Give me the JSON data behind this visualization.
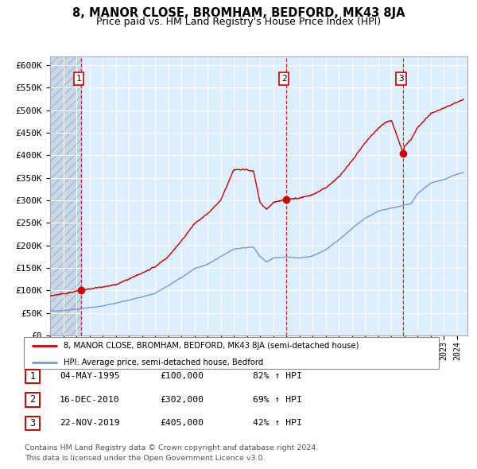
{
  "title": "8, MANOR CLOSE, BROMHAM, BEDFORD, MK43 8JA",
  "subtitle": "Price paid vs. HM Land Registry's House Price Index (HPI)",
  "ylim": [
    0,
    620000
  ],
  "yticks": [
    0,
    50000,
    100000,
    150000,
    200000,
    250000,
    300000,
    350000,
    400000,
    450000,
    500000,
    550000,
    600000
  ],
  "ytick_labels": [
    "£0",
    "£50K",
    "£100K",
    "£150K",
    "£200K",
    "£250K",
    "£300K",
    "£350K",
    "£400K",
    "£450K",
    "£500K",
    "£550K",
    "£600K"
  ],
  "hpi_color": "#7799cc",
  "price_color": "#cc0000",
  "sale1_date": 1995.34,
  "sale1_price": 100000,
  "sale2_date": 2010.96,
  "sale2_price": 302000,
  "sale3_date": 2019.9,
  "sale3_price": 405000,
  "background_color": "#ddeeff",
  "legend_label_price": "8, MANOR CLOSE, BROMHAM, BEDFORD, MK43 8JA (semi-detached house)",
  "legend_label_hpi": "HPI: Average price, semi-detached house, Bedford",
  "table_rows": [
    {
      "num": "1",
      "date": "04-MAY-1995",
      "price": "£100,000",
      "change": "82% ↑ HPI"
    },
    {
      "num": "2",
      "date": "16-DEC-2010",
      "price": "£302,000",
      "change": "69% ↑ HPI"
    },
    {
      "num": "3",
      "date": "22-NOV-2019",
      "price": "£405,000",
      "change": "42% ↑ HPI"
    }
  ],
  "footer": "Contains HM Land Registry data © Crown copyright and database right 2024.\nThis data is licensed under the Open Government Licence v3.0.",
  "title_fontsize": 10.5,
  "subtitle_fontsize": 9,
  "tick_fontsize": 8,
  "xlim_start": 1993,
  "xlim_end": 2024.8
}
